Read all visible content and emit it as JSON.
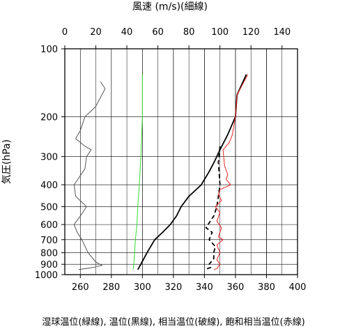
{
  "chart_data": {
    "type": "line",
    "title": "",
    "top_axis": {
      "label": "風速 (m/s)(細線)",
      "range": [
        0,
        150
      ],
      "ticks": [
        "0",
        "20",
        "40",
        "60",
        "80",
        "100",
        "120",
        "140"
      ]
    },
    "bottom_axis": {
      "label": "湿球温位(緑線), 温位(黒線), 相当温位(破線), 飽和相当温位(赤線)",
      "range": [
        250,
        400
      ],
      "ticks": [
        "260",
        "280",
        "300",
        "320",
        "340",
        "360",
        "380",
        "400"
      ]
    },
    "y_axis": {
      "label": "気圧(hPa)",
      "scale": "log",
      "inverted": true,
      "range": [
        100,
        1000
      ],
      "ticks": [
        "100",
        "200",
        "300",
        "400",
        "500",
        "600",
        "700",
        "800",
        "900",
        "1000"
      ]
    },
    "grid": true,
    "series": [
      {
        "name": "風速",
        "axis": "top",
        "color": "#555555",
        "points": [
          [
            23,
            140
          ],
          [
            26,
            150
          ],
          [
            20,
            180
          ],
          [
            13,
            200
          ],
          [
            10,
            230
          ],
          [
            7,
            250
          ],
          [
            13,
            270
          ],
          [
            17,
            280
          ],
          [
            14,
            300
          ],
          [
            13,
            340
          ],
          [
            6,
            400
          ],
          [
            7,
            450
          ],
          [
            14,
            500
          ],
          [
            10,
            550
          ],
          [
            6,
            600
          ],
          [
            8,
            650
          ],
          [
            11,
            700
          ],
          [
            15,
            800
          ],
          [
            20,
            880
          ],
          [
            24,
            910
          ],
          [
            18,
            930
          ],
          [
            9,
            950
          ]
        ]
      },
      {
        "name": "湿球温位",
        "axis": "bottom",
        "color": "#33dd33",
        "points": [
          [
            300,
            130
          ],
          [
            300,
            200
          ],
          [
            299,
            300
          ],
          [
            298,
            400
          ],
          [
            297,
            500
          ],
          [
            296.5,
            600
          ],
          [
            295.5,
            700
          ],
          [
            295,
            800
          ],
          [
            294.5,
            900
          ],
          [
            294,
            950
          ]
        ]
      },
      {
        "name": "温位",
        "axis": "bottom",
        "color": "#000000",
        "points": [
          [
            367,
            130
          ],
          [
            361,
            160
          ],
          [
            360,
            200
          ],
          [
            355,
            240
          ],
          [
            350,
            280
          ],
          [
            346,
            320
          ],
          [
            343,
            350
          ],
          [
            338,
            400
          ],
          [
            330,
            450
          ],
          [
            325,
            500
          ],
          [
            322,
            550
          ],
          [
            318,
            600
          ],
          [
            313,
            650
          ],
          [
            308,
            700
          ],
          [
            303,
            800
          ],
          [
            299,
            900
          ],
          [
            297,
            950
          ]
        ]
      },
      {
        "name": "相当温位",
        "axis": "bottom",
        "color": "#000000",
        "dashed": true,
        "points": [
          [
            350,
            270
          ],
          [
            349,
            320
          ],
          [
            350,
            400
          ],
          [
            349,
            450
          ],
          [
            348,
            500
          ],
          [
            346,
            550
          ],
          [
            341,
            620
          ],
          [
            345,
            650
          ],
          [
            343,
            700
          ],
          [
            347,
            750
          ],
          [
            346,
            800
          ],
          [
            346,
            850
          ],
          [
            343,
            900
          ],
          [
            344,
            930
          ],
          [
            340,
            950
          ]
        ]
      },
      {
        "name": "飽和相当温位",
        "axis": "bottom",
        "color": "#ee2222",
        "points": [
          [
            368,
            130
          ],
          [
            361,
            160
          ],
          [
            360,
            200
          ],
          [
            358,
            240
          ],
          [
            356,
            260
          ],
          [
            352,
            280
          ],
          [
            353,
            330
          ],
          [
            355,
            360
          ],
          [
            354,
            380
          ],
          [
            357,
            400
          ],
          [
            350,
            420
          ],
          [
            349,
            440
          ],
          [
            351,
            470
          ],
          [
            347,
            500
          ],
          [
            350,
            530
          ],
          [
            348,
            580
          ],
          [
            351,
            620
          ],
          [
            349,
            680
          ],
          [
            352,
            700
          ],
          [
            348,
            740
          ],
          [
            350,
            800
          ],
          [
            348,
            860
          ],
          [
            350,
            900
          ],
          [
            348,
            940
          ],
          [
            346,
            950
          ]
        ]
      }
    ]
  }
}
